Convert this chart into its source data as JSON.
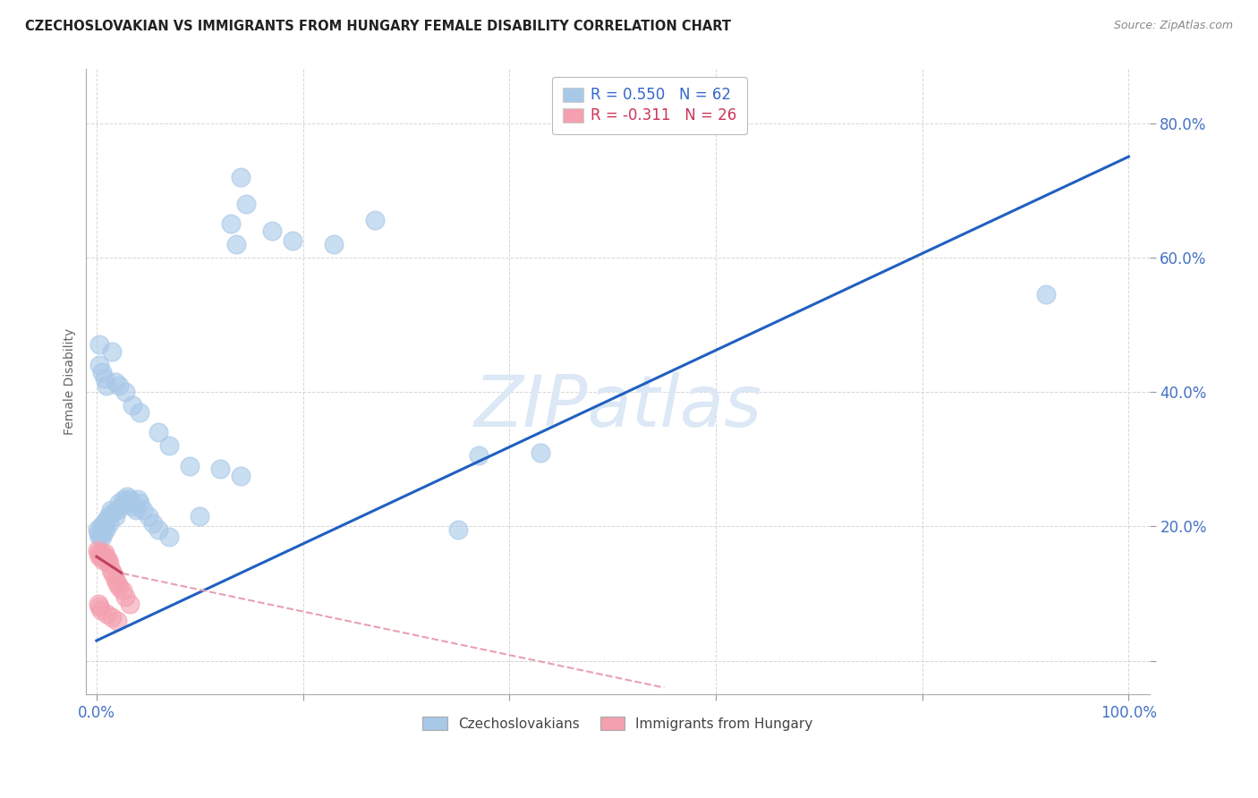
{
  "title": "CZECHOSLOVAKIAN VS IMMIGRANTS FROM HUNGARY FEMALE DISABILITY CORRELATION CHART",
  "source": "Source: ZipAtlas.com",
  "ylabel": "Female Disability",
  "xlim": [
    -0.01,
    1.02
  ],
  "ylim": [
    -0.05,
    0.88
  ],
  "blue_color": "#a8c8e8",
  "pink_color": "#f4a0b0",
  "trendline_blue_color": "#2060c0",
  "trendline_pink_solid_color": "#c04060",
  "trendline_pink_dash_color": "#e8a0b0",
  "watermark": "ZIPatlas",
  "blue_trendline": [
    [
      0.0,
      0.03
    ],
    [
      1.0,
      0.75
    ]
  ],
  "pink_trendline_solid": [
    [
      0.0,
      0.155
    ],
    [
      0.025,
      0.13
    ]
  ],
  "pink_trendline_dash": [
    [
      0.025,
      0.13
    ],
    [
      0.55,
      -0.04
    ]
  ],
  "blue_dots": [
    [
      0.001,
      0.195
    ],
    [
      0.002,
      0.19
    ],
    [
      0.003,
      0.185
    ],
    [
      0.004,
      0.2
    ],
    [
      0.005,
      0.185
    ],
    [
      0.006,
      0.19
    ],
    [
      0.007,
      0.205
    ],
    [
      0.008,
      0.2
    ],
    [
      0.009,
      0.195
    ],
    [
      0.01,
      0.21
    ],
    [
      0.011,
      0.215
    ],
    [
      0.012,
      0.205
    ],
    [
      0.014,
      0.225
    ],
    [
      0.016,
      0.22
    ],
    [
      0.018,
      0.215
    ],
    [
      0.02,
      0.225
    ],
    [
      0.022,
      0.235
    ],
    [
      0.024,
      0.23
    ],
    [
      0.026,
      0.24
    ],
    [
      0.028,
      0.235
    ],
    [
      0.03,
      0.245
    ],
    [
      0.032,
      0.24
    ],
    [
      0.034,
      0.235
    ],
    [
      0.036,
      0.23
    ],
    [
      0.038,
      0.225
    ],
    [
      0.04,
      0.24
    ],
    [
      0.042,
      0.235
    ],
    [
      0.045,
      0.225
    ],
    [
      0.05,
      0.215
    ],
    [
      0.055,
      0.205
    ],
    [
      0.06,
      0.195
    ],
    [
      0.07,
      0.185
    ],
    [
      0.003,
      0.44
    ],
    [
      0.005,
      0.43
    ],
    [
      0.008,
      0.42
    ],
    [
      0.01,
      0.41
    ],
    [
      0.015,
      0.46
    ],
    [
      0.018,
      0.415
    ],
    [
      0.022,
      0.41
    ],
    [
      0.028,
      0.4
    ],
    [
      0.035,
      0.38
    ],
    [
      0.042,
      0.37
    ],
    [
      0.003,
      0.47
    ],
    [
      0.06,
      0.34
    ],
    [
      0.07,
      0.32
    ],
    [
      0.1,
      0.215
    ],
    [
      0.14,
      0.72
    ],
    [
      0.145,
      0.68
    ],
    [
      0.17,
      0.64
    ],
    [
      0.19,
      0.625
    ],
    [
      0.23,
      0.62
    ],
    [
      0.27,
      0.655
    ],
    [
      0.35,
      0.195
    ],
    [
      0.37,
      0.305
    ],
    [
      0.43,
      0.31
    ],
    [
      0.92,
      0.545
    ],
    [
      0.13,
      0.65
    ],
    [
      0.135,
      0.62
    ],
    [
      0.09,
      0.29
    ],
    [
      0.12,
      0.285
    ],
    [
      0.14,
      0.275
    ]
  ],
  "pink_dots": [
    [
      0.001,
      0.165
    ],
    [
      0.002,
      0.16
    ],
    [
      0.003,
      0.155
    ],
    [
      0.004,
      0.16
    ],
    [
      0.005,
      0.155
    ],
    [
      0.006,
      0.15
    ],
    [
      0.007,
      0.155
    ],
    [
      0.008,
      0.16
    ],
    [
      0.009,
      0.155
    ],
    [
      0.01,
      0.15
    ],
    [
      0.011,
      0.15
    ],
    [
      0.012,
      0.145
    ],
    [
      0.014,
      0.135
    ],
    [
      0.016,
      0.13
    ],
    [
      0.018,
      0.12
    ],
    [
      0.02,
      0.115
    ],
    [
      0.022,
      0.11
    ],
    [
      0.025,
      0.105
    ],
    [
      0.028,
      0.095
    ],
    [
      0.032,
      0.085
    ],
    [
      0.002,
      0.085
    ],
    [
      0.003,
      0.08
    ],
    [
      0.004,
      0.075
    ],
    [
      0.01,
      0.07
    ],
    [
      0.015,
      0.065
    ],
    [
      0.02,
      0.06
    ]
  ]
}
